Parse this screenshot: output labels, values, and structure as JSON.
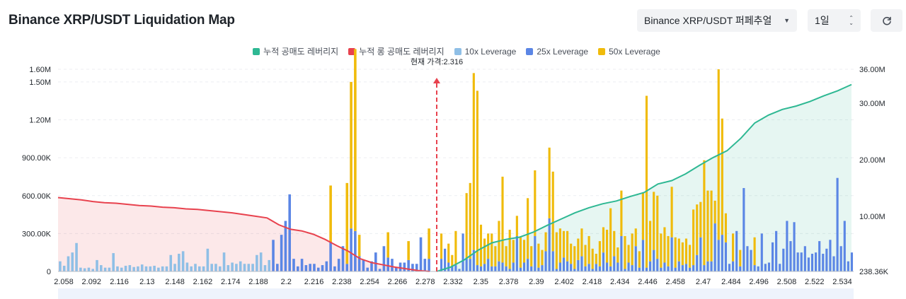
{
  "header": {
    "title": "Binance XRP/USDT Liquidation Map",
    "pair_select": "Binance XRP/USDT 퍼페추얼",
    "period_select": "1일"
  },
  "colors": {
    "short_cumulative": "#2eb893",
    "long_cumulative": "#e8424e",
    "lev10": "#8fbfe6",
    "lev25": "#5b86e5",
    "lev50": "#f0bb0b"
  },
  "icons": {
    "pair_caret": "caret-down-icon",
    "period_stepper": "up-down-chevron-icon",
    "refresh": "refresh-icon"
  },
  "chart_data": {
    "type": "bar",
    "current_price_label": "현재 가격:2.316",
    "legend": [
      {
        "key": "short_cum",
        "label": "누적 공매도 레버리지",
        "color": "#2eb893"
      },
      {
        "key": "long_cum",
        "label": "누적 롱 공매도 레버리지",
        "color": "#e8424e"
      },
      {
        "key": "lev10",
        "label": "10x Leverage",
        "color": "#8fbfe6"
      },
      {
        "key": "lev25",
        "label": "25x Leverage",
        "color": "#5b86e5"
      },
      {
        "key": "lev50",
        "label": "50x Leverage",
        "color": "#f0bb0b"
      }
    ],
    "y_left_ticks": [
      "0",
      "300.00K",
      "600.00K",
      "900.00K",
      "1.20M",
      "1.50M",
      "1.60M"
    ],
    "y_left_values": [
      0,
      300000,
      600000,
      900000,
      1200000,
      1500000,
      1600000
    ],
    "y_right_ticks": [
      "238.36K",
      "10.00M",
      "20.00M",
      "30.00M",
      "36.00M"
    ],
    "y_right_values": [
      238360,
      10000000,
      20000000,
      30000000,
      36000000
    ],
    "ylim_left": [
      0,
      1600000
    ],
    "ylim_right": [
      238360,
      36000000
    ],
    "x_tick_labels": [
      "2.058",
      "2.092",
      "2.116",
      "2.13",
      "2.148",
      "2.162",
      "2.174",
      "2.188",
      "2.2",
      "2.216",
      "2.238",
      "2.254",
      "2.266",
      "2.278",
      "2.332",
      "2.35",
      "2.378",
      "2.39",
      "2.402",
      "2.418",
      "2.434",
      "2.446",
      "2.458",
      "2.47",
      "2.484",
      "2.496",
      "2.508",
      "2.522",
      "2.534"
    ],
    "current_price": 2.316,
    "bars_left": [
      [
        80000,
        0,
        0
      ],
      [
        45000,
        0,
        0
      ],
      [
        120000,
        0,
        0
      ],
      [
        150000,
        0,
        0
      ],
      [
        225000,
        0,
        0
      ],
      [
        30000,
        0,
        0
      ],
      [
        25000,
        0,
        0
      ],
      [
        30000,
        0,
        0
      ],
      [
        20000,
        0,
        0
      ],
      [
        90000,
        0,
        0
      ],
      [
        50000,
        0,
        0
      ],
      [
        30000,
        0,
        0
      ],
      [
        30000,
        0,
        0
      ],
      [
        145000,
        0,
        0
      ],
      [
        40000,
        0,
        0
      ],
      [
        30000,
        0,
        0
      ],
      [
        45000,
        0,
        0
      ],
      [
        50000,
        0,
        0
      ],
      [
        35000,
        0,
        0
      ],
      [
        40000,
        0,
        0
      ],
      [
        55000,
        0,
        0
      ],
      [
        40000,
        0,
        0
      ],
      [
        40000,
        0,
        0
      ],
      [
        45000,
        0,
        0
      ],
      [
        30000,
        0,
        0
      ],
      [
        40000,
        0,
        0
      ],
      [
        40000,
        0,
        0
      ],
      [
        130000,
        0,
        0
      ],
      [
        60000,
        0,
        0
      ],
      [
        140000,
        0,
        0
      ],
      [
        160000,
        0,
        0
      ],
      [
        70000,
        0,
        0
      ],
      [
        40000,
        0,
        0
      ],
      [
        60000,
        0,
        0
      ],
      [
        40000,
        0,
        0
      ],
      [
        40000,
        0,
        0
      ],
      [
        180000,
        0,
        0
      ],
      [
        60000,
        0,
        0
      ],
      [
        60000,
        0,
        0
      ],
      [
        40000,
        0,
        0
      ],
      [
        150000,
        0,
        0
      ],
      [
        50000,
        0,
        0
      ],
      [
        70000,
        0,
        0
      ],
      [
        60000,
        0,
        0
      ],
      [
        80000,
        0,
        0
      ],
      [
        60000,
        0,
        0
      ],
      [
        60000,
        0,
        0
      ],
      [
        60000,
        0,
        0
      ],
      [
        130000,
        0,
        0
      ],
      [
        150000,
        0,
        0
      ],
      [
        50000,
        0,
        0
      ],
      [
        90000,
        0,
        0
      ],
      [
        0,
        250000,
        0
      ],
      [
        0,
        60000,
        0
      ],
      [
        0,
        290000,
        0
      ],
      [
        0,
        400000,
        0
      ],
      [
        0,
        610000,
        0
      ],
      [
        0,
        100000,
        0
      ],
      [
        0,
        40000,
        0
      ],
      [
        0,
        100000,
        0
      ],
      [
        0,
        50000,
        0
      ],
      [
        0,
        60000,
        0
      ],
      [
        0,
        60000,
        0
      ],
      [
        0,
        30000,
        0
      ],
      [
        0,
        50000,
        0
      ],
      [
        0,
        80000,
        0
      ],
      [
        0,
        230000,
        450000
      ],
      [
        0,
        40000,
        0
      ],
      [
        0,
        100000,
        0
      ],
      [
        0,
        200000,
        0
      ],
      [
        0,
        60000,
        640000
      ],
      [
        0,
        340000,
        1160000
      ],
      [
        0,
        320000,
        1440000
      ],
      [
        0,
        120000,
        170000
      ],
      [
        0,
        90000,
        0
      ],
      [
        0,
        30000,
        0
      ],
      [
        0,
        80000,
        0
      ],
      [
        0,
        150000,
        0
      ],
      [
        0,
        20000,
        0
      ],
      [
        0,
        200000,
        0
      ],
      [
        0,
        110000,
        200000
      ],
      [
        0,
        100000,
        0
      ],
      [
        0,
        30000,
        0
      ],
      [
        0,
        70000,
        0
      ],
      [
        0,
        70000,
        0
      ],
      [
        0,
        90000,
        150000
      ],
      [
        0,
        60000,
        0
      ],
      [
        0,
        60000,
        0
      ],
      [
        0,
        270000,
        0
      ],
      [
        0,
        100000,
        0
      ],
      [
        0,
        100000,
        240000
      ]
    ],
    "bars_right": [
      [
        0,
        100000,
        200000
      ],
      [
        0,
        180000,
        0
      ],
      [
        0,
        70000,
        150000
      ],
      [
        0,
        40000,
        90000
      ],
      [
        0,
        50000,
        270000
      ],
      [
        0,
        20000,
        0
      ],
      [
        0,
        300000,
        0
      ],
      [
        0,
        100000,
        520000
      ],
      [
        0,
        100000,
        600000
      ],
      [
        0,
        170000,
        1400000
      ],
      [
        0,
        50000,
        1380000
      ],
      [
        0,
        40000,
        330000
      ],
      [
        0,
        60000,
        200000
      ],
      [
        0,
        100000,
        200000
      ],
      [
        0,
        40000,
        260000
      ],
      [
        0,
        40000,
        160000
      ],
      [
        0,
        80000,
        320000
      ],
      [
        0,
        70000,
        680000
      ],
      [
        0,
        40000,
        160000
      ],
      [
        0,
        20000,
        310000
      ],
      [
        0,
        70000,
        180000
      ],
      [
        0,
        280000,
        160000
      ],
      [
        0,
        30000,
        240000
      ],
      [
        0,
        70000,
        180000
      ],
      [
        0,
        100000,
        480000
      ],
      [
        0,
        40000,
        160000
      ],
      [
        0,
        280000,
        520000
      ],
      [
        0,
        30000,
        190000
      ],
      [
        0,
        50000,
        120000
      ],
      [
        0,
        160000,
        150000
      ],
      [
        0,
        420000,
        560000
      ],
      [
        0,
        160000,
        630000
      ],
      [
        0,
        20000,
        290000
      ],
      [
        0,
        70000,
        270000
      ],
      [
        0,
        110000,
        210000
      ],
      [
        0,
        80000,
        240000
      ],
      [
        0,
        60000,
        160000
      ],
      [
        0,
        20000,
        180000
      ],
      [
        0,
        90000,
        170000
      ],
      [
        0,
        120000,
        220000
      ],
      [
        0,
        40000,
        170000
      ],
      [
        0,
        60000,
        220000
      ],
      [
        0,
        20000,
        160000
      ],
      [
        0,
        60000,
        80000
      ],
      [
        0,
        40000,
        200000
      ],
      [
        0,
        150000,
        200000
      ],
      [
        0,
        70000,
        260000
      ],
      [
        0,
        40000,
        460000
      ],
      [
        0,
        120000,
        200000
      ],
      [
        0,
        70000,
        120000
      ],
      [
        0,
        280000,
        360000
      ],
      [
        0,
        20000,
        260000
      ],
      [
        0,
        70000,
        140000
      ],
      [
        0,
        50000,
        250000
      ],
      [
        0,
        200000,
        140000
      ],
      [
        0,
        30000,
        130000
      ],
      [
        0,
        250000,
        370000
      ],
      [
        0,
        30000,
        1360000
      ],
      [
        0,
        80000,
        320000
      ],
      [
        0,
        170000,
        460000
      ],
      [
        0,
        100000,
        500000
      ],
      [
        0,
        30000,
        270000
      ],
      [
        0,
        70000,
        280000
      ],
      [
        0,
        40000,
        240000
      ],
      [
        0,
        270000,
        400000
      ],
      [
        0,
        30000,
        240000
      ],
      [
        0,
        80000,
        180000
      ],
      [
        0,
        50000,
        180000
      ],
      [
        0,
        60000,
        200000
      ],
      [
        0,
        30000,
        180000
      ],
      [
        0,
        50000,
        440000
      ],
      [
        0,
        130000,
        400000
      ],
      [
        0,
        270000,
        280000
      ],
      [
        0,
        50000,
        830000
      ],
      [
        0,
        80000,
        560000
      ],
      [
        0,
        80000,
        560000
      ],
      [
        0,
        380000,
        180000
      ],
      [
        0,
        250000,
        1350000
      ],
      [
        0,
        290000,
        920000
      ],
      [
        0,
        230000,
        230000
      ],
      [
        0,
        60000,
        0
      ],
      [
        0,
        80000,
        220000
      ],
      [
        0,
        320000,
        0
      ],
      [
        0,
        40000,
        130000
      ],
      [
        0,
        660000,
        0
      ],
      [
        0,
        200000,
        0
      ],
      [
        0,
        170000,
        0
      ],
      [
        0,
        50000,
        220000
      ],
      [
        0,
        40000,
        0
      ],
      [
        0,
        300000,
        0
      ],
      [
        0,
        60000,
        0
      ],
      [
        0,
        70000,
        0
      ],
      [
        0,
        230000,
        0
      ],
      [
        0,
        320000,
        0
      ],
      [
        0,
        60000,
        0
      ],
      [
        0,
        180000,
        0
      ],
      [
        0,
        400000,
        0
      ],
      [
        0,
        240000,
        0
      ],
      [
        0,
        390000,
        0
      ],
      [
        0,
        150000,
        0
      ],
      [
        0,
        150000,
        0
      ],
      [
        0,
        200000,
        0
      ],
      [
        0,
        110000,
        0
      ],
      [
        0,
        140000,
        0
      ],
      [
        0,
        150000,
        0
      ],
      [
        0,
        240000,
        0
      ],
      [
        0,
        140000,
        0
      ],
      [
        0,
        180000,
        0
      ],
      [
        0,
        250000,
        0
      ],
      [
        0,
        120000,
        0
      ],
      [
        0,
        740000,
        0
      ],
      [
        0,
        200000,
        0
      ],
      [
        0,
        400000,
        0
      ],
      [
        0,
        80000,
        0
      ],
      [
        0,
        150000,
        0
      ]
    ],
    "long_cumulative_millions": [
      13.3,
      13.1,
      12.9,
      12.6,
      12.4,
      12.3,
      12.1,
      11.9,
      11.8,
      11.6,
      11.5,
      11.3,
      11.2,
      11.0,
      10.8,
      10.6,
      10.3,
      10.0,
      9.7,
      8.5,
      7.7,
      7.4,
      6.8,
      5.9,
      4.8,
      3.8,
      2.5,
      1.8,
      1.4,
      1.0,
      0.7,
      0.4,
      0.24
    ],
    "short_cumulative_millions": [
      0.24,
      1.0,
      2.3,
      4.0,
      5.3,
      5.9,
      6.3,
      7.2,
      8.4,
      9.5,
      10.6,
      11.5,
      12.2,
      12.7,
      13.5,
      14.2,
      15.7,
      16.3,
      17.5,
      19.0,
      20.4,
      21.6,
      23.8,
      26.5,
      27.9,
      28.9,
      29.5,
      30.3,
      31.3,
      32.2,
      33.3
    ]
  }
}
